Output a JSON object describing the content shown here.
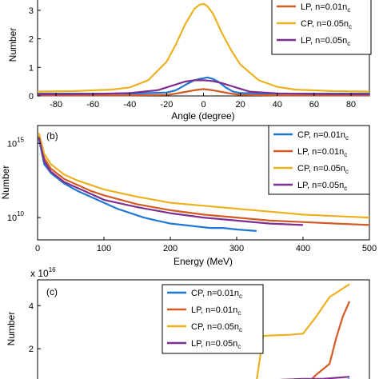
{
  "chart_data": [
    {
      "panel": "a",
      "panel_label": "",
      "type": "line",
      "xlabel": "Angle (degree)",
      "ylabel": "Number",
      "xlim": [
        -90,
        90
      ],
      "ylim": [
        0,
        3.5
      ],
      "xticks": [
        -80,
        -60,
        -40,
        -20,
        0,
        20,
        40,
        60,
        80
      ],
      "yticks": [
        0,
        1,
        2,
        3
      ],
      "legend_position": "top-right",
      "series": [
        {
          "name": "CP, n=0.01n_c",
          "color": "#1f77d4",
          "visible_in_legend": false,
          "x": [
            -90,
            -60,
            -40,
            -20,
            -15,
            -10,
            -5,
            -2,
            0,
            2,
            5,
            8,
            12,
            16,
            20,
            40,
            60,
            90
          ],
          "y": [
            0.08,
            0.08,
            0.08,
            0.12,
            0.2,
            0.38,
            0.55,
            0.6,
            0.62,
            0.65,
            0.6,
            0.5,
            0.3,
            0.15,
            0.1,
            0.08,
            0.08,
            0.08
          ]
        },
        {
          "name": "LP, n=0.01n_c",
          "color": "#d35a23",
          "x": [
            -90,
            -60,
            -40,
            -20,
            -15,
            -10,
            -5,
            0,
            5,
            10,
            15,
            20,
            40,
            60,
            90
          ],
          "y": [
            0.02,
            0.02,
            0.02,
            0.04,
            0.08,
            0.14,
            0.2,
            0.24,
            0.2,
            0.14,
            0.08,
            0.04,
            0.02,
            0.02,
            0.02
          ]
        },
        {
          "name": "CP, n=0.05n_c",
          "color": "#edb120",
          "x": [
            -90,
            -70,
            -50,
            -40,
            -30,
            -20,
            -15,
            -10,
            -5,
            -2,
            0,
            2,
            5,
            10,
            15,
            20,
            30,
            40,
            50,
            70,
            90
          ],
          "y": [
            0.15,
            0.17,
            0.22,
            0.3,
            0.55,
            1.2,
            1.8,
            2.5,
            3.05,
            3.2,
            3.22,
            3.15,
            2.9,
            2.2,
            1.6,
            1.1,
            0.55,
            0.32,
            0.22,
            0.17,
            0.15
          ]
        },
        {
          "name": "LP, n=0.05n_c",
          "color": "#7e2f8e",
          "x": [
            -90,
            -60,
            -40,
            -25,
            -15,
            -10,
            -5,
            0,
            5,
            10,
            15,
            20,
            25,
            40,
            60,
            90
          ],
          "y": [
            0.06,
            0.07,
            0.1,
            0.2,
            0.4,
            0.5,
            0.55,
            0.55,
            0.52,
            0.45,
            0.35,
            0.25,
            0.15,
            0.09,
            0.07,
            0.06
          ]
        }
      ]
    },
    {
      "panel": "b",
      "panel_label": "(b)",
      "type": "line",
      "xlabel": "Energy (MeV)",
      "ylabel": "Number",
      "xlim": [
        0,
        500
      ],
      "ylog": true,
      "ylim_exponent": [
        8.5,
        16.2
      ],
      "xticks": [
        0,
        100,
        200,
        300,
        400,
        500
      ],
      "yticks_exponent": [
        10,
        15
      ],
      "legend_position": "top-right",
      "series": [
        {
          "name": "CP, n=0.01n_c",
          "color": "#1f77d4",
          "x": [
            2,
            10,
            20,
            40,
            60,
            80,
            100,
            120,
            140,
            160,
            180,
            200,
            220,
            240,
            260,
            280,
            300,
            330
          ],
          "y_exponent": [
            15.3,
            13.6,
            13.0,
            12.3,
            11.8,
            11.4,
            11.0,
            10.6,
            10.3,
            10.0,
            9.8,
            9.6,
            9.5,
            9.4,
            9.3,
            9.3,
            9.2,
            9.1
          ]
        },
        {
          "name": "LP, n=0.01n_c",
          "color": "#d35a23",
          "x": [
            2,
            10,
            20,
            40,
            60,
            80,
            100,
            150,
            200,
            250,
            300,
            350,
            400,
            450,
            500
          ],
          "y_exponent": [
            15.5,
            14.0,
            13.3,
            12.6,
            12.2,
            11.8,
            11.5,
            10.9,
            10.5,
            10.2,
            10.0,
            9.8,
            9.7,
            9.6,
            9.5
          ]
        },
        {
          "name": "CP, n=0.05n_c",
          "color": "#edb120",
          "x": [
            2,
            10,
            20,
            40,
            60,
            80,
            100,
            150,
            200,
            250,
            300,
            350,
            400,
            450,
            500
          ],
          "y_exponent": [
            15.7,
            14.3,
            13.6,
            12.9,
            12.5,
            12.2,
            11.9,
            11.4,
            11.0,
            10.8,
            10.6,
            10.4,
            10.2,
            10.1,
            10.0
          ]
        },
        {
          "name": "LP, n=0.05n_c",
          "color": "#7e2f8e",
          "x": [
            2,
            10,
            20,
            40,
            60,
            80,
            100,
            150,
            200,
            250,
            300,
            350,
            400
          ],
          "y_exponent": [
            15.4,
            13.8,
            13.1,
            12.4,
            12.0,
            11.6,
            11.2,
            10.7,
            10.3,
            10.0,
            9.8,
            9.6,
            9.5
          ]
        }
      ]
    },
    {
      "panel": "c",
      "panel_label": "(c)",
      "type": "line",
      "xlabel": "",
      "ylabel": "Number",
      "y_multiplier": "x 10",
      "y_multiplier_exponent": "16",
      "xlim": [
        0,
        500
      ],
      "ylim": [
        0,
        5.2
      ],
      "yticks": [
        2,
        4
      ],
      "legend_position": "top-center",
      "series": [
        {
          "name": "CP, n=0.01n_c",
          "color": "#1f77d4",
          "x": [
            0,
            300,
            330,
            360,
            390,
            420,
            450,
            470
          ],
          "y": [
            0,
            0,
            0.05,
            0.08,
            0.1,
            0.15,
            0.3,
            0.6
          ]
        },
        {
          "name": "LP, n=0.01n_c",
          "color": "#d35a23",
          "x": [
            0,
            320,
            380,
            400,
            420,
            440,
            450,
            460,
            470
          ],
          "y": [
            0,
            0,
            0.1,
            0.2,
            0.8,
            1.3,
            2.5,
            3.5,
            4.2
          ]
        },
        {
          "name": "CP, n=0.05n_c",
          "color": "#edb120",
          "x": [
            0,
            290,
            330,
            340,
            380,
            400,
            420,
            440,
            460,
            470
          ],
          "y": [
            0,
            0,
            0.5,
            2.6,
            2.65,
            2.7,
            3.5,
            4.4,
            4.8,
            5.0
          ]
        },
        {
          "name": "LP, n=0.05n_c",
          "color": "#7e2f8e",
          "x": [
            0,
            290,
            300,
            320,
            360,
            400,
            430,
            450,
            470
          ],
          "y": [
            0,
            0,
            0.2,
            0.5,
            0.55,
            0.6,
            0.6,
            0.65,
            0.7
          ]
        }
      ]
    }
  ],
  "legend": {
    "a": [
      {
        "prefix": "LP, n=0.01n",
        "sub": "c",
        "color": "#d35a23"
      },
      {
        "prefix": "CP, n=0.05n",
        "sub": "c",
        "color": "#edb120"
      },
      {
        "prefix": "LP, n=0.05n",
        "sub": "c",
        "color": "#7e2f8e"
      }
    ],
    "b": [
      {
        "prefix": "CP, n=0.01n",
        "sub": "c",
        "color": "#1f77d4"
      },
      {
        "prefix": "LP, n=0.01n",
        "sub": "c",
        "color": "#d35a23"
      },
      {
        "prefix": "CP, n=0.05n",
        "sub": "c",
        "color": "#edb120"
      },
      {
        "prefix": "LP, n=0.05n",
        "sub": "c",
        "color": "#7e2f8e"
      }
    ],
    "c": [
      {
        "prefix": "CP, n=0.01n",
        "sub": "c",
        "color": "#1f77d4"
      },
      {
        "prefix": "LP, n=0.01n",
        "sub": "c",
        "color": "#d35a23"
      },
      {
        "prefix": "CP, n=0.05n",
        "sub": "c",
        "color": "#edb120"
      },
      {
        "prefix": "LP, n=0.05n",
        "sub": "c",
        "color": "#7e2f8e"
      }
    ]
  }
}
